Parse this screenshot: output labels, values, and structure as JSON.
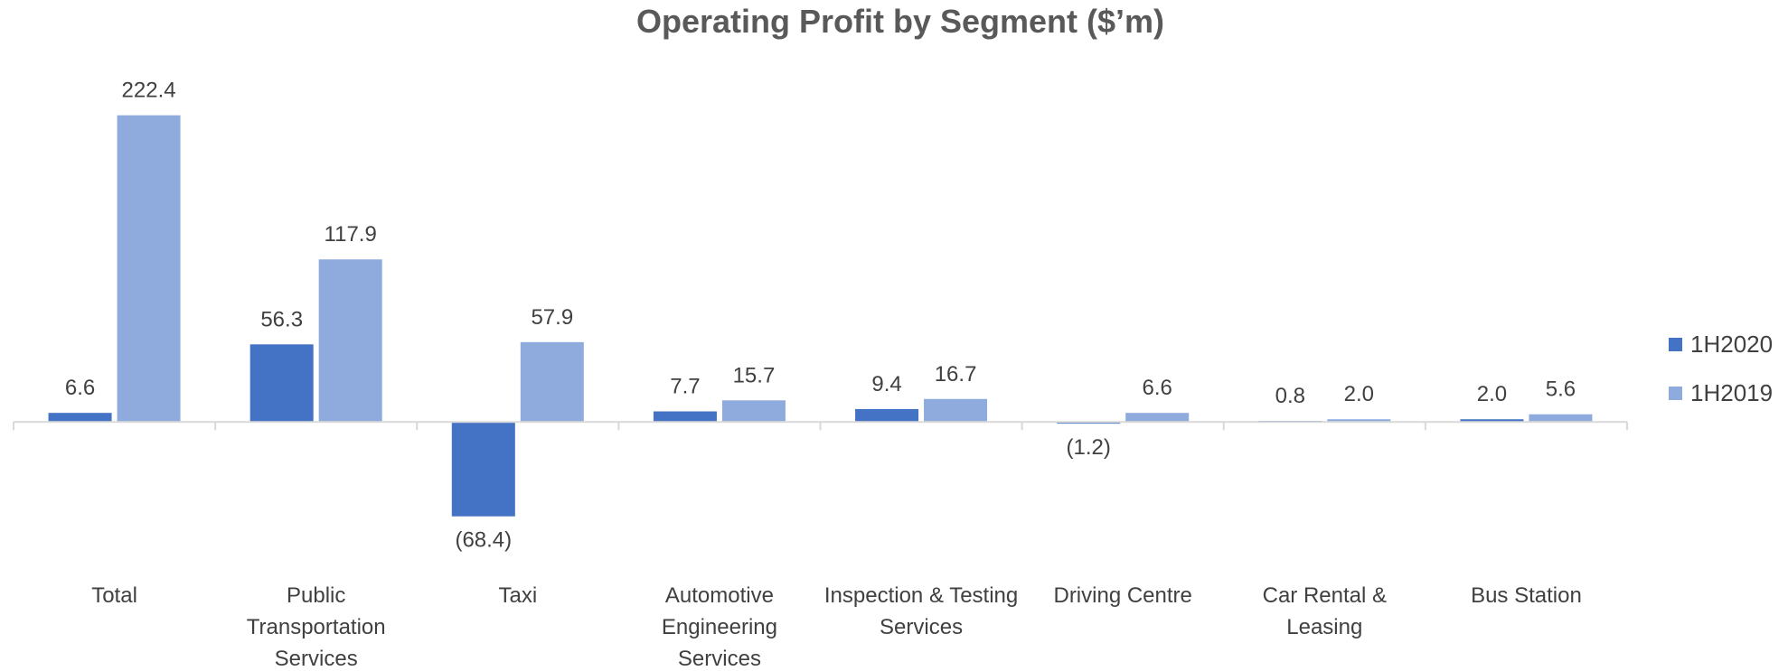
{
  "chart_data": {
    "type": "bar",
    "title": "Operating Profit by Segment ($’m)",
    "categories": [
      "Total",
      "Public Transportation Services",
      "Taxi",
      "Automotive Engineering Services",
      "Inspection & Testing Services",
      "Driving Centre",
      "Car Rental & Leasing",
      "Bus Station"
    ],
    "series": [
      {
        "name": "1H2020",
        "color": "#4472c4",
        "values": [
          6.6,
          56.3,
          -68.4,
          7.7,
          9.4,
          -1.2,
          0.8,
          2.0
        ],
        "value_labels": [
          "6.6",
          "56.3",
          "(68.4)",
          "7.7",
          "9.4",
          "(1.2)",
          "0.8",
          "2.0"
        ]
      },
      {
        "name": "1H2019",
        "color": "#8faadc",
        "values": [
          222.4,
          117.9,
          57.9,
          15.7,
          16.7,
          6.6,
          2.0,
          5.6
        ],
        "value_labels": [
          "222.4",
          "117.9",
          "57.9",
          "15.7",
          "16.7",
          "6.6",
          "2.0",
          "5.6"
        ]
      }
    ],
    "ylim": [
      -100,
      250
    ],
    "legend": "right"
  }
}
